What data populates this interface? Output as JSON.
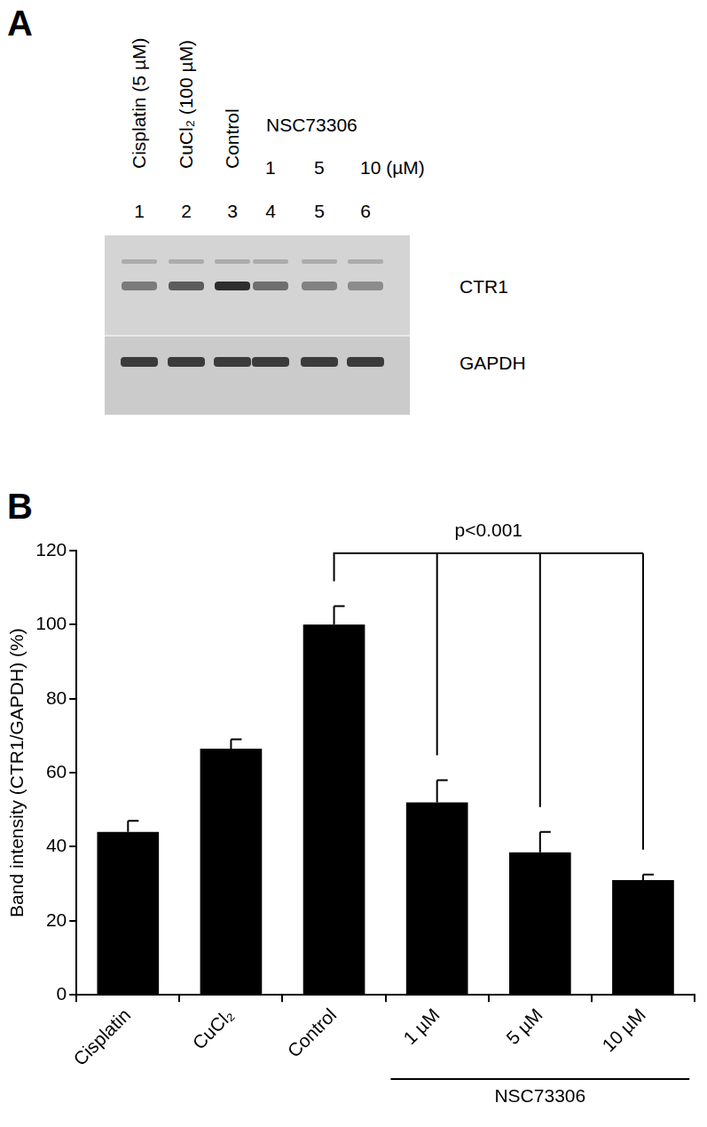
{
  "panels": [
    "A",
    "B"
  ],
  "blot": {
    "lanes": [
      {
        "label": "Cisplatin (5 µM)",
        "number": 1
      },
      {
        "label": "CuCl₂ (100 µM)",
        "number": 2
      },
      {
        "label": "Control",
        "number": 3
      },
      {
        "label": "1",
        "number": 4
      },
      {
        "label": "5",
        "number": 5
      },
      {
        "label": "10 (µM)",
        "number": 6
      }
    ],
    "group_label": "NSC73306",
    "rows": [
      "CTR1",
      "GAPDH"
    ]
  },
  "chart_data": {
    "type": "bar",
    "ylabel": "Band intensity (CTR1/GAPDH) (%)",
    "categories": [
      "Cisplatin",
      "CuCl₂",
      "Control",
      "1 µM",
      "5 µM",
      "10 µM"
    ],
    "values": [
      44,
      66.5,
      100,
      52,
      38.5,
      31
    ],
    "errors": [
      3,
      2.5,
      5,
      6,
      5.5,
      1.5
    ],
    "color": "#000000",
    "ylim": [
      0,
      120
    ],
    "yticks": [
      0,
      20,
      40,
      60,
      80,
      100,
      120
    ],
    "grid": false,
    "annotations": [
      "p<0.001"
    ],
    "groups": [
      {
        "label": "NSC73306",
        "categories": [
          "1 µM",
          "5 µM",
          "10 µM"
        ]
      }
    ]
  }
}
